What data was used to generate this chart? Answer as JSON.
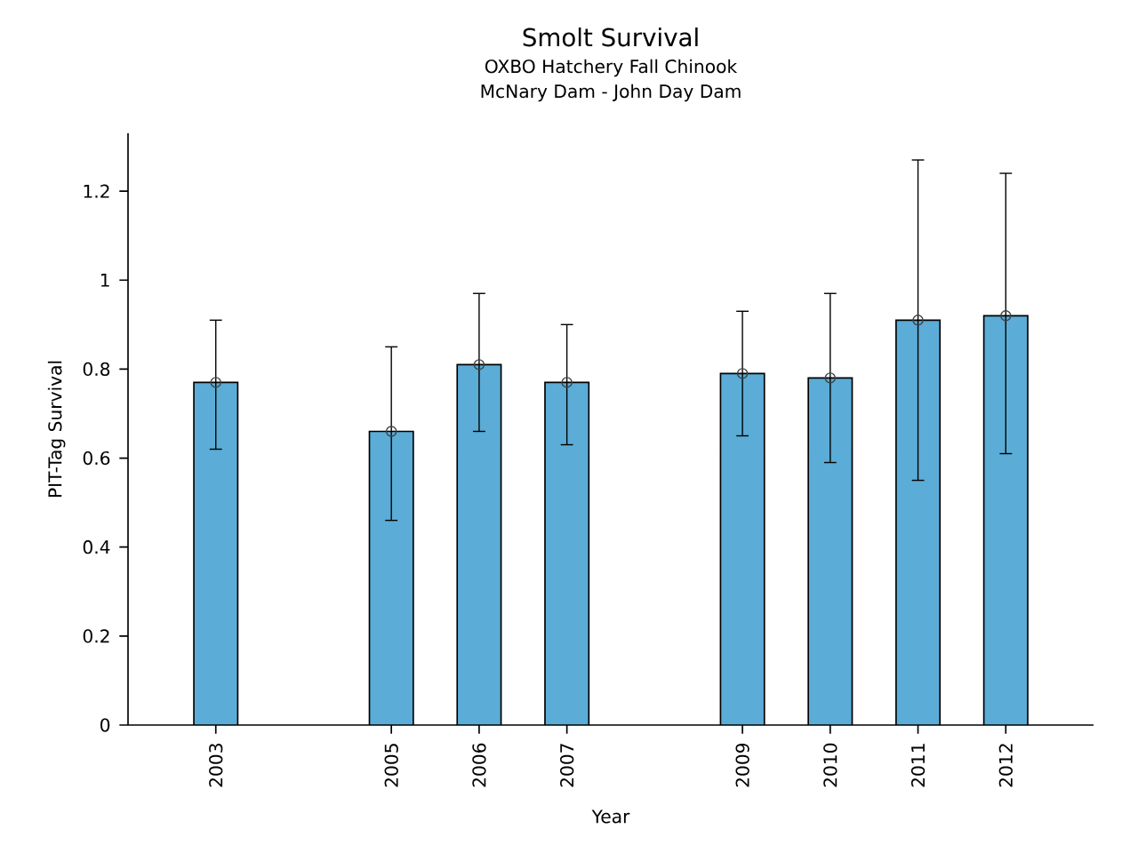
{
  "chart_data": {
    "type": "bar",
    "title": "Smolt Survival",
    "subtitle": "OXBO Hatchery Fall Chinook",
    "annotations": [
      "McNary Dam - John Day Dam"
    ],
    "xlabel": "Year",
    "ylabel": "PIT-Tag Survival",
    "x": [
      2003,
      2005,
      2006,
      2007,
      2009,
      2010,
      2011,
      2012
    ],
    "series": [
      {
        "color": "#5bacd6",
        "values": [
          0.77,
          0.66,
          0.81,
          0.77,
          0.79,
          0.78,
          0.91,
          0.92
        ],
        "errors": [
          [
            0.62,
            0.91
          ],
          [
            0.46,
            0.85
          ],
          [
            0.66,
            0.97
          ],
          [
            0.63,
            0.9
          ],
          [
            0.65,
            0.93
          ],
          [
            0.59,
            0.97
          ],
          [
            0.55,
            1.27
          ],
          [
            0.61,
            1.24
          ]
        ]
      },
      {
        "type": "scatter",
        "color": "#404040",
        "values": [
          0.77,
          0.66,
          0.81,
          0.77,
          0.79,
          0.78,
          0.91,
          0.92
        ]
      }
    ],
    "marker": "circle",
    "xlim": [
      2002,
      2013
    ],
    "xticks": [
      2003,
      2005,
      2006,
      2007,
      2009,
      2010,
      2011,
      2012
    ],
    "ylim": [
      0,
      1.33
    ],
    "yticks": [
      0,
      0.2,
      0.4,
      0.6,
      0.8,
      1,
      1.2
    ],
    "grid": false
  }
}
